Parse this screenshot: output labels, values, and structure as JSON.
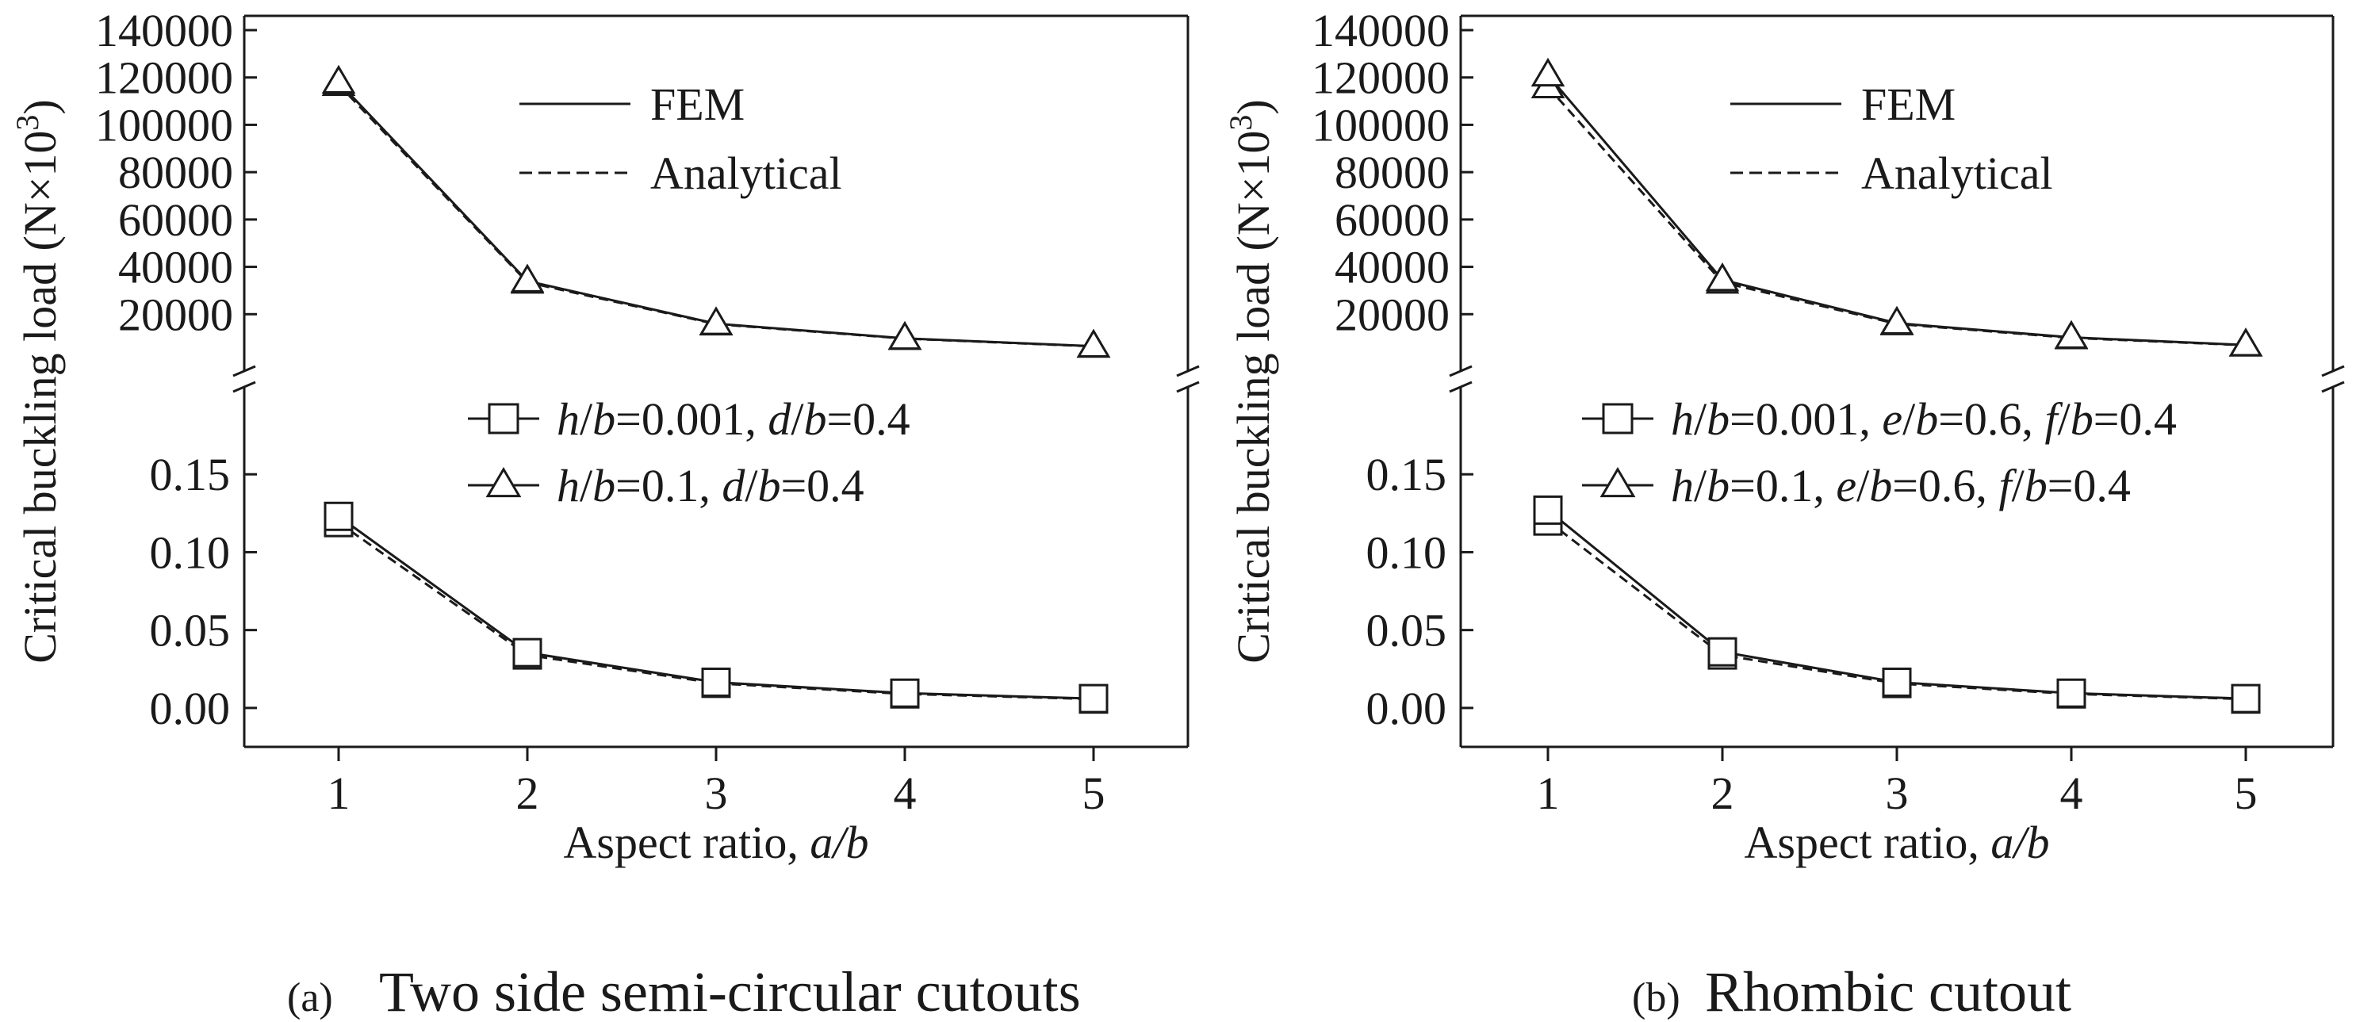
{
  "colors": {
    "ink": "#1a1a1a",
    "background": "#ffffff",
    "panel": "#ffffff"
  },
  "chart_data": [
    {
      "type": "line",
      "panel_label": "(a)",
      "caption": "Two side semi-circular cutouts",
      "xlabel_text": "Aspect ratio, ",
      "xlabel_var": "a/b",
      "ylabel_text": "Critical buckling load (N×10",
      "ylabel_sup": "3",
      "ylabel_close": ")",
      "x": [
        1,
        2,
        3,
        4,
        5
      ],
      "xlim": [
        0.5,
        5.5
      ],
      "xticks": [
        "1",
        "2",
        "3",
        "4",
        "5"
      ],
      "broken_y_axis": true,
      "upper_ylim": [
        0,
        140000
      ],
      "upper_yticks": [
        "20000",
        "40000",
        "60000",
        "80000",
        "100000",
        "120000",
        "140000"
      ],
      "lower_ylim": [
        -0.025,
        0.2
      ],
      "lower_yticks": [
        "0.00",
        "0.05",
        "0.10",
        "0.15"
      ],
      "line_legend": [
        {
          "style": "solid",
          "label": "FEM"
        },
        {
          "style": "dashed",
          "label": "Analytical"
        }
      ],
      "series": [
        {
          "marker": "square",
          "axis": "lower",
          "legend_parts": [
            {
              "t": "h",
              "i": true
            },
            {
              "t": "/",
              "i": false
            },
            {
              "t": "b",
              "i": true
            },
            {
              "t": "=0.001, ",
              "i": false
            },
            {
              "t": "d",
              "i": true
            },
            {
              "t": "/",
              "i": false
            },
            {
              "t": "b",
              "i": true
            },
            {
              "t": "=0.4",
              "i": false
            }
          ],
          "fem": [
            0.123,
            0.0355,
            0.0165,
            0.0095,
            0.006
          ],
          "analytical": [
            0.119,
            0.034,
            0.0158,
            0.009,
            0.0057
          ]
        },
        {
          "marker": "triangle",
          "axis": "upper",
          "legend_parts": [
            {
              "t": "h",
              "i": true
            },
            {
              "t": "/",
              "i": false
            },
            {
              "t": "b",
              "i": true
            },
            {
              "t": "=0.1, ",
              "i": false
            },
            {
              "t": "d",
              "i": true
            },
            {
              "t": "/",
              "i": false
            },
            {
              "t": "b",
              "i": true
            },
            {
              "t": "=0.4",
              "i": false
            }
          ],
          "fem": [
            118000,
            34000,
            16000,
            9800,
            6500
          ],
          "analytical": [
            117000,
            33500,
            15800,
            9700,
            6400
          ]
        }
      ]
    },
    {
      "type": "line",
      "panel_label": "(b)",
      "caption": "Rhombic cutout",
      "xlabel_text": "Aspect ratio, ",
      "xlabel_var": "a/b",
      "ylabel_text": "Critical buckling load (N×10",
      "ylabel_sup": "3",
      "ylabel_close": ")",
      "x": [
        1,
        2,
        3,
        4,
        5
      ],
      "xlim": [
        0.5,
        5.5
      ],
      "xticks": [
        "1",
        "2",
        "3",
        "4",
        "5"
      ],
      "broken_y_axis": true,
      "upper_ylim": [
        0,
        140000
      ],
      "upper_yticks": [
        "20000",
        "40000",
        "60000",
        "80000",
        "100000",
        "120000",
        "140000"
      ],
      "lower_ylim": [
        -0.025,
        0.2
      ],
      "lower_yticks": [
        "0.00",
        "0.05",
        "0.10",
        "0.15"
      ],
      "line_legend": [
        {
          "style": "solid",
          "label": "FEM"
        },
        {
          "style": "dashed",
          "label": "Analytical"
        }
      ],
      "series": [
        {
          "marker": "square",
          "axis": "lower",
          "legend_parts": [
            {
              "t": "h",
              "i": true
            },
            {
              "t": "/",
              "i": false
            },
            {
              "t": "b",
              "i": true
            },
            {
              "t": "=0.001, ",
              "i": false
            },
            {
              "t": "e",
              "i": true
            },
            {
              "t": "/",
              "i": false
            },
            {
              "t": "b",
              "i": true
            },
            {
              "t": "=0.6, ",
              "i": false
            },
            {
              "t": "f",
              "i": true
            },
            {
              "t": "/",
              "i": false
            },
            {
              "t": "b",
              "i": true
            },
            {
              "t": "=0.4",
              "i": false
            }
          ],
          "fem": [
            0.127,
            0.036,
            0.0165,
            0.0095,
            0.006
          ],
          "analytical": [
            0.12,
            0.034,
            0.0157,
            0.009,
            0.0057
          ]
        },
        {
          "marker": "triangle",
          "axis": "upper",
          "legend_parts": [
            {
              "t": "h",
              "i": true
            },
            {
              "t": "/",
              "i": false
            },
            {
              "t": "b",
              "i": true
            },
            {
              "t": "=0.1, ",
              "i": false
            },
            {
              "t": "e",
              "i": true
            },
            {
              "t": "/",
              "i": false
            },
            {
              "t": "b",
              "i": true
            },
            {
              "t": "=0.6, ",
              "i": false
            },
            {
              "t": "f",
              "i": true
            },
            {
              "t": "/",
              "i": false
            },
            {
              "t": "b",
              "i": true
            },
            {
              "t": "=0.4",
              "i": false
            }
          ],
          "fem": [
            121000,
            34500,
            16200,
            10200,
            7000
          ],
          "analytical": [
            116000,
            33500,
            15900,
            10000,
            6900
          ]
        }
      ]
    }
  ]
}
